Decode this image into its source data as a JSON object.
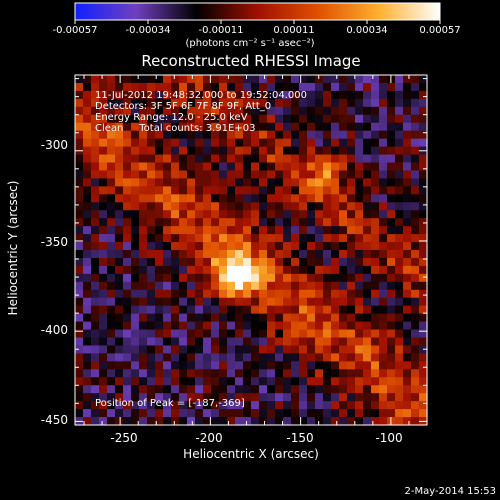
{
  "colorbar": {
    "ticks": [
      "-0.00057",
      "-0.00034",
      "-0.00011",
      "0.00011",
      "0.00034",
      "0.00057"
    ],
    "units": "(photons cm⁻² s⁻¹ asec⁻²)",
    "colors": [
      "#1020ff",
      "#7040c0",
      "#000000",
      "#a01000",
      "#e05000",
      "#ffb030",
      "#ffffff"
    ]
  },
  "chart_data": {
    "type": "heatmap",
    "title": "Reconstructed RHESSI Image",
    "xlabel": "Heliocentric X (arcsec)",
    "ylabel": "Heliocentric Y (arcsec)",
    "xlim": [
      -275,
      -80
    ],
    "ylim": [
      -452,
      -258
    ],
    "x_ticks": [
      "-250",
      "-200",
      "-150",
      "-100"
    ],
    "y_ticks": [
      "-300",
      "-350",
      "-400",
      "-450"
    ],
    "value_range": [
      -0.00057,
      0.00057
    ],
    "peak": [
      -187,
      -369
    ],
    "annotations": [
      "11-Jul-2012 19:48:32.000 to 19:52:04.000",
      "Detectors: 3F 5F 6F 7F 8F 9F, Att_0",
      "Energy Range: 12.0 - 25.0 keV",
      "Clean     Total counts: 3.91E+03"
    ],
    "peak_label": "Position of Peak = [-187,-369]"
  },
  "footer": {
    "date": "2-May-2014 15:53"
  }
}
